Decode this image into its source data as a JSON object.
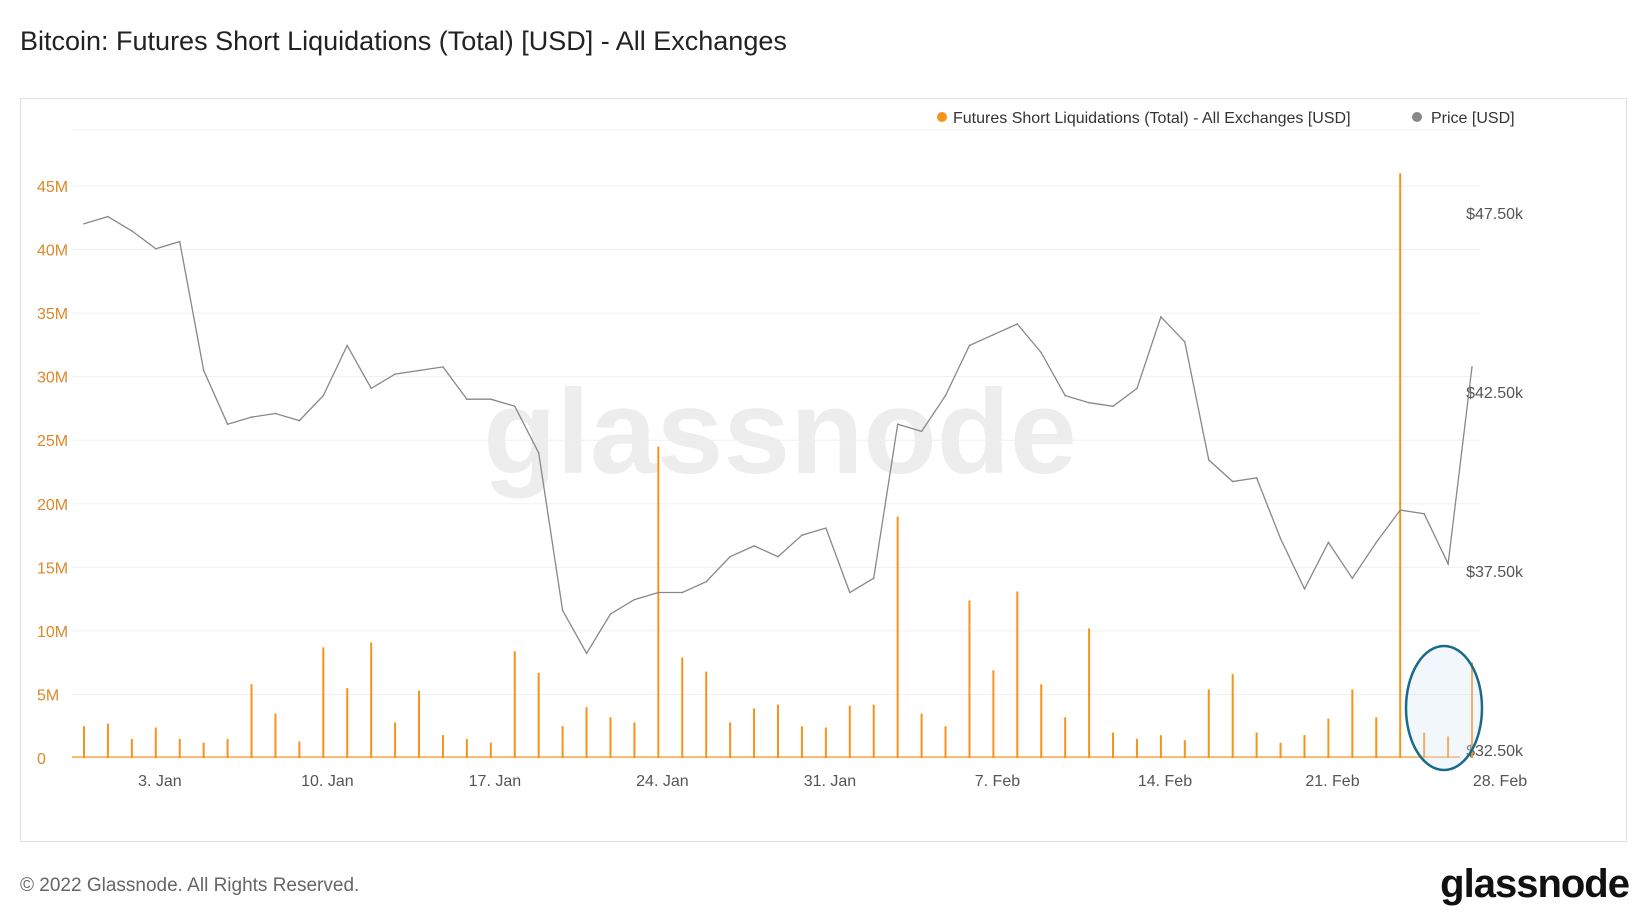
{
  "title": "Bitcoin: Futures Short Liquidations (Total) [USD] - All Exchanges",
  "footer": {
    "copyright": "© 2022 Glassnode. All Rights Reserved.",
    "logo": "glassnode"
  },
  "watermark": "glassnode",
  "colors": {
    "liquidations": "#f7931a",
    "price": "#888888",
    "left_axis_text": "#d98a2b",
    "grid": "#f0f0f0",
    "highlight_ellipse": "#1b6a8a"
  },
  "chart_data": {
    "type": "line",
    "title": "Bitcoin: Futures Short Liquidations (Total) [USD] - All Exchanges",
    "legend": {
      "position": "top-right",
      "entries": [
        {
          "name": "Futures Short Liquidations (Total) - All Exchanges [USD]",
          "color": "#f7931a"
        },
        {
          "name": "Price [USD]",
          "color": "#888888"
        }
      ]
    },
    "grid": true,
    "x_range": [
      "2022-01-01",
      "2022-02-28"
    ],
    "x_ticks": [
      {
        "date": "2022-01-03",
        "label": "3. Jan"
      },
      {
        "date": "2022-01-10",
        "label": "10. Jan"
      },
      {
        "date": "2022-01-17",
        "label": "17. Jan"
      },
      {
        "date": "2022-01-24",
        "label": "24. Jan"
      },
      {
        "date": "2022-01-31",
        "label": "31. Jan"
      },
      {
        "date": "2022-02-07",
        "label": "7. Feb"
      },
      {
        "date": "2022-02-14",
        "label": "14. Feb"
      },
      {
        "date": "2022-02-21",
        "label": "21. Feb"
      },
      {
        "date": "2022-02-28",
        "label": "28. Feb"
      }
    ],
    "y_left": {
      "range": [
        0,
        45000000
      ],
      "ticks": [
        {
          "value": 0,
          "label": "0"
        },
        {
          "value": 5000000,
          "label": "5M"
        },
        {
          "value": 10000000,
          "label": "10M"
        },
        {
          "value": 15000000,
          "label": "15M"
        },
        {
          "value": 20000000,
          "label": "20M"
        },
        {
          "value": 25000000,
          "label": "25M"
        },
        {
          "value": 30000000,
          "label": "30M"
        },
        {
          "value": 35000000,
          "label": "35M"
        },
        {
          "value": 40000000,
          "label": "40M"
        },
        {
          "value": 45000000,
          "label": "45M"
        }
      ]
    },
    "y_right": {
      "range": [
        32500,
        47500
      ],
      "ticks": [
        {
          "value": 32500,
          "label": "$32.50k"
        },
        {
          "value": 37500,
          "label": "$37.50k"
        },
        {
          "value": 42500,
          "label": "$42.50k"
        },
        {
          "value": 47500,
          "label": "$47.50k"
        }
      ]
    },
    "series": [
      {
        "name": "Futures Short Liquidations (Total) - All Exchanges [USD]",
        "axis": "left",
        "type": "spikes",
        "points": [
          [
            "2022-01-01",
            2500000
          ],
          [
            "2022-01-02",
            2700000
          ],
          [
            "2022-01-03",
            1500000
          ],
          [
            "2022-01-04",
            2400000
          ],
          [
            "2022-01-05",
            1500000
          ],
          [
            "2022-01-06",
            1200000
          ],
          [
            "2022-01-07",
            1500000
          ],
          [
            "2022-01-08",
            5800000
          ],
          [
            "2022-01-09",
            3500000
          ],
          [
            "2022-01-10",
            1300000
          ],
          [
            "2022-01-11",
            8700000
          ],
          [
            "2022-01-12",
            5500000
          ],
          [
            "2022-01-13",
            9100000
          ],
          [
            "2022-01-14",
            2800000
          ],
          [
            "2022-01-15",
            5300000
          ],
          [
            "2022-01-16",
            1800000
          ],
          [
            "2022-01-17",
            1500000
          ],
          [
            "2022-01-18",
            1200000
          ],
          [
            "2022-01-19",
            8400000
          ],
          [
            "2022-01-20",
            6700000
          ],
          [
            "2022-01-21",
            2500000
          ],
          [
            "2022-01-22",
            4000000
          ],
          [
            "2022-01-23",
            3200000
          ],
          [
            "2022-01-24",
            2800000
          ],
          [
            "2022-01-25",
            24500000
          ],
          [
            "2022-01-26",
            7900000
          ],
          [
            "2022-01-27",
            6800000
          ],
          [
            "2022-01-28",
            2800000
          ],
          [
            "2022-01-29",
            3900000
          ],
          [
            "2022-01-30",
            4200000
          ],
          [
            "2022-01-31",
            2500000
          ],
          [
            "2022-02-01",
            2400000
          ],
          [
            "2022-02-02",
            4100000
          ],
          [
            "2022-02-03",
            4200000
          ],
          [
            "2022-02-04",
            19000000
          ],
          [
            "2022-02-05",
            3500000
          ],
          [
            "2022-02-06",
            2500000
          ],
          [
            "2022-02-07",
            12400000
          ],
          [
            "2022-02-08",
            6900000
          ],
          [
            "2022-02-09",
            13100000
          ],
          [
            "2022-02-10",
            5800000
          ],
          [
            "2022-02-11",
            3200000
          ],
          [
            "2022-02-12",
            10200000
          ],
          [
            "2022-02-13",
            2000000
          ],
          [
            "2022-02-14",
            1500000
          ],
          [
            "2022-02-15",
            1800000
          ],
          [
            "2022-02-16",
            1400000
          ],
          [
            "2022-02-17",
            5400000
          ],
          [
            "2022-02-18",
            6600000
          ],
          [
            "2022-02-19",
            2000000
          ],
          [
            "2022-02-20",
            1200000
          ],
          [
            "2022-02-21",
            1800000
          ],
          [
            "2022-02-22",
            3100000
          ],
          [
            "2022-02-23",
            5400000
          ],
          [
            "2022-02-24",
            3200000
          ],
          [
            "2022-02-25",
            46000000
          ],
          [
            "2022-02-26",
            2000000
          ],
          [
            "2022-02-27",
            1700000
          ],
          [
            "2022-02-28",
            7500000
          ]
        ]
      },
      {
        "name": "Price [USD]",
        "axis": "right",
        "type": "line",
        "points": [
          [
            "2022-01-01",
            47200
          ],
          [
            "2022-01-02",
            47400
          ],
          [
            "2022-01-03",
            47000
          ],
          [
            "2022-01-04",
            46500
          ],
          [
            "2022-01-05",
            46700
          ],
          [
            "2022-01-06",
            43100
          ],
          [
            "2022-01-07",
            41600
          ],
          [
            "2022-01-08",
            41800
          ],
          [
            "2022-01-09",
            41900
          ],
          [
            "2022-01-10",
            41700
          ],
          [
            "2022-01-11",
            42400
          ],
          [
            "2022-01-12",
            43800
          ],
          [
            "2022-01-13",
            42600
          ],
          [
            "2022-01-14",
            43000
          ],
          [
            "2022-01-15",
            43100
          ],
          [
            "2022-01-16",
            43200
          ],
          [
            "2022-01-17",
            42300
          ],
          [
            "2022-01-18",
            42300
          ],
          [
            "2022-01-19",
            42100
          ],
          [
            "2022-01-20",
            40800
          ],
          [
            "2022-01-21",
            36400
          ],
          [
            "2022-01-22",
            35200
          ],
          [
            "2022-01-23",
            36300
          ],
          [
            "2022-01-24",
            36700
          ],
          [
            "2022-01-25",
            36900
          ],
          [
            "2022-01-26",
            36900
          ],
          [
            "2022-01-27",
            37200
          ],
          [
            "2022-01-28",
            37900
          ],
          [
            "2022-01-29",
            38200
          ],
          [
            "2022-01-30",
            37900
          ],
          [
            "2022-01-31",
            38500
          ],
          [
            "2022-02-01",
            38700
          ],
          [
            "2022-02-02",
            36900
          ],
          [
            "2022-02-03",
            37300
          ],
          [
            "2022-02-04",
            41600
          ],
          [
            "2022-02-05",
            41400
          ],
          [
            "2022-02-06",
            42400
          ],
          [
            "2022-02-07",
            43800
          ],
          [
            "2022-02-08",
            44100
          ],
          [
            "2022-02-09",
            44400
          ],
          [
            "2022-02-10",
            43600
          ],
          [
            "2022-02-11",
            42400
          ],
          [
            "2022-02-12",
            42200
          ],
          [
            "2022-02-13",
            42100
          ],
          [
            "2022-02-14",
            42600
          ],
          [
            "2022-02-15",
            44600
          ],
          [
            "2022-02-16",
            43900
          ],
          [
            "2022-02-17",
            40600
          ],
          [
            "2022-02-18",
            40000
          ],
          [
            "2022-02-19",
            40100
          ],
          [
            "2022-02-20",
            38400
          ],
          [
            "2022-02-21",
            37000
          ],
          [
            "2022-02-22",
            38300
          ],
          [
            "2022-02-23",
            37300
          ],
          [
            "2022-02-24",
            38300
          ],
          [
            "2022-02-25",
            39200
          ],
          [
            "2022-02-26",
            39100
          ],
          [
            "2022-02-27",
            37700
          ],
          [
            "2022-02-28",
            43200
          ]
        ]
      }
    ]
  }
}
